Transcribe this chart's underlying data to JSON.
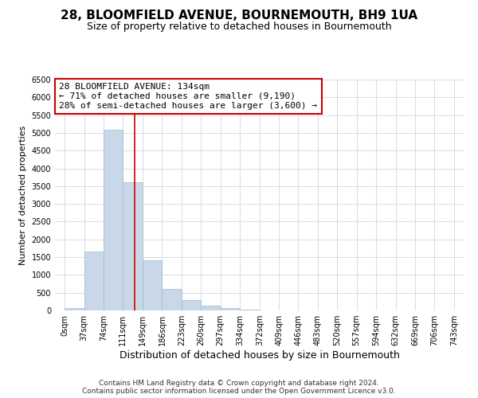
{
  "title": "28, BLOOMFIELD AVENUE, BOURNEMOUTH, BH9 1UA",
  "subtitle": "Size of property relative to detached houses in Bournemouth",
  "xlabel": "Distribution of detached houses by size in Bournemouth",
  "ylabel": "Number of detached properties",
  "bar_edges": [
    0,
    37,
    74,
    111,
    149,
    186,
    223,
    260,
    297,
    334,
    372,
    409,
    446,
    483,
    520,
    557,
    594,
    632,
    669,
    706,
    743
  ],
  "bar_heights": [
    70,
    1650,
    5080,
    3600,
    1420,
    610,
    300,
    145,
    75,
    20,
    5,
    2,
    1,
    0,
    0,
    0,
    0,
    0,
    0,
    0
  ],
  "bar_color": "#c8d8e8",
  "bar_edge_color": "#a0b8cc",
  "vline_x": 134,
  "vline_color": "#cc0000",
  "ylim": [
    0,
    6500
  ],
  "yticks": [
    0,
    500,
    1000,
    1500,
    2000,
    2500,
    3000,
    3500,
    4000,
    4500,
    5000,
    5500,
    6000,
    6500
  ],
  "annotation_title": "28 BLOOMFIELD AVENUE: 134sqm",
  "annotation_line1": "← 71% of detached houses are smaller (9,190)",
  "annotation_line2": "28% of semi-detached houses are larger (3,600) →",
  "annotation_box_color": "#ffffff",
  "annotation_box_edge": "#cc0000",
  "footer1": "Contains HM Land Registry data © Crown copyright and database right 2024.",
  "footer2": "Contains public sector information licensed under the Open Government Licence v3.0.",
  "background_color": "#ffffff",
  "grid_color": "#d0d8e0",
  "title_fontsize": 11,
  "subtitle_fontsize": 9,
  "xlabel_fontsize": 9,
  "ylabel_fontsize": 8,
  "tick_label_fontsize": 7,
  "annotation_fontsize": 8,
  "footer_fontsize": 6.5
}
